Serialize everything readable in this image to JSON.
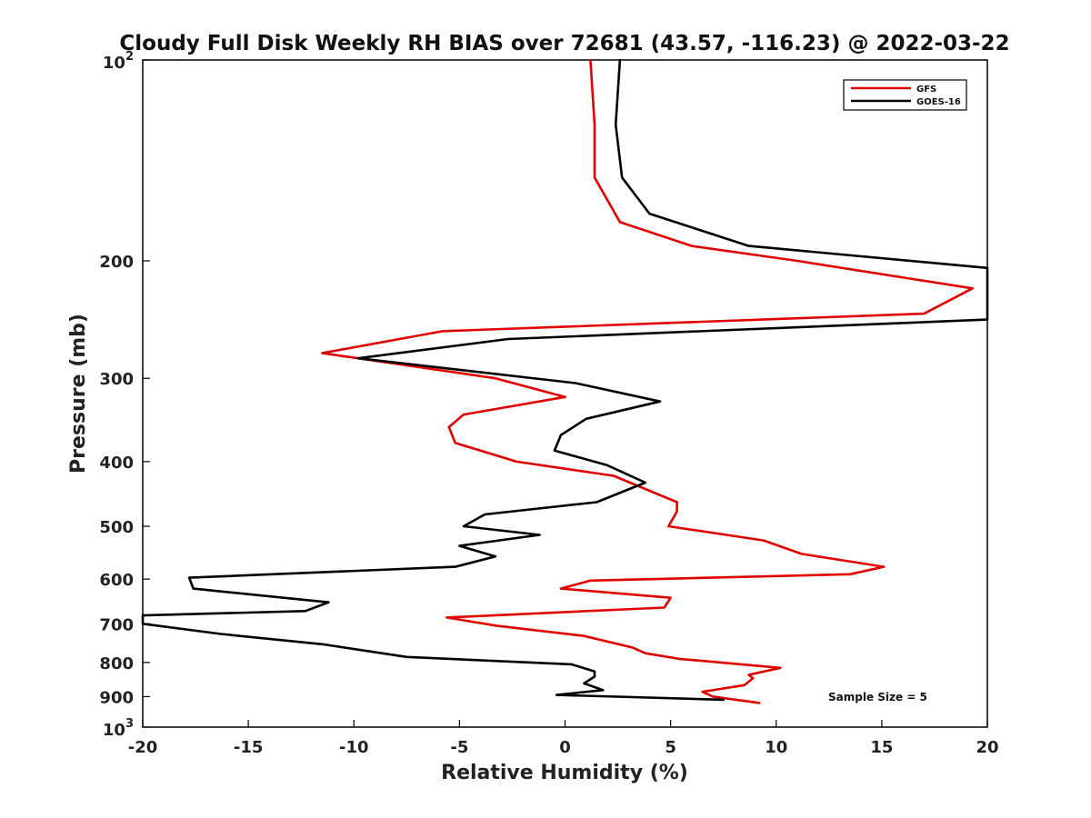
{
  "chart_data": {
    "type": "line",
    "title": "Cloudy Full Disk Weekly RH BIAS over 72681 (43.57, -116.23) @ 2022-03-22",
    "xlabel": "Relative Humidity (%)",
    "ylabel": "Pressure (mb)",
    "xlim": [
      -20,
      20
    ],
    "ylim": [
      1000,
      100
    ],
    "y_scale": "log",
    "y_reversed": true,
    "x_ticks": [
      "-20",
      "-15",
      "-10",
      "-5",
      "0",
      "5",
      "10",
      "15",
      "20"
    ],
    "y_ticks": [
      {
        "value": 100,
        "base": "10",
        "exp": "2"
      },
      {
        "value": 200,
        "label": "200"
      },
      {
        "value": 300,
        "label": "300"
      },
      {
        "value": 400,
        "label": "400"
      },
      {
        "value": 500,
        "label": "500"
      },
      {
        "value": 600,
        "label": "600"
      },
      {
        "value": 700,
        "label": "700"
      },
      {
        "value": 800,
        "label": "800"
      },
      {
        "value": 900,
        "label": "900"
      },
      {
        "value": 1000,
        "base": "10",
        "exp": "3"
      }
    ],
    "grid": false,
    "legend": "top-right",
    "annotation": "Sample Size = 5",
    "series": [
      {
        "name": "GFS",
        "color": "#e00000",
        "points": [
          [
            1.2,
            100
          ],
          [
            1.4,
            125
          ],
          [
            1.4,
            150
          ],
          [
            2.6,
            175
          ],
          [
            6.0,
            190
          ],
          [
            11.0,
            200
          ],
          [
            19.3,
            220
          ],
          [
            17.0,
            240
          ],
          [
            -5.8,
            255
          ],
          [
            -11.5,
            275
          ],
          [
            -3.3,
            300
          ],
          [
            0.0,
            320
          ],
          [
            -4.8,
            340
          ],
          [
            -5.5,
            355
          ],
          [
            -5.2,
            375
          ],
          [
            -2.3,
            400
          ],
          [
            2.3,
            420
          ],
          [
            5.3,
            460
          ],
          [
            5.3,
            475
          ],
          [
            4.9,
            500
          ],
          [
            9.4,
            525
          ],
          [
            11.2,
            550
          ],
          [
            15.1,
            575
          ],
          [
            13.5,
            590
          ],
          [
            1.2,
            603
          ],
          [
            -0.2,
            620
          ],
          [
            5.0,
            640
          ],
          [
            4.7,
            662
          ],
          [
            -5.6,
            685
          ],
          [
            -3.2,
            705
          ],
          [
            0.9,
            730
          ],
          [
            3.2,
            760
          ],
          [
            3.8,
            775
          ],
          [
            5.4,
            790
          ],
          [
            10.2,
            815
          ],
          [
            8.7,
            835
          ],
          [
            8.9,
            845
          ],
          [
            8.5,
            865
          ],
          [
            6.5,
            885
          ],
          [
            7.0,
            900
          ],
          [
            9.2,
            920
          ]
        ]
      },
      {
        "name": "GOES-16",
        "color": "#000000",
        "points": [
          [
            2.6,
            100
          ],
          [
            2.4,
            125
          ],
          [
            2.7,
            150
          ],
          [
            4.0,
            170
          ],
          [
            8.7,
            190
          ],
          [
            20.0,
            205
          ],
          [
            20.0,
            245
          ],
          [
            -2.7,
            262
          ],
          [
            -9.8,
            280
          ],
          [
            0.5,
            305
          ],
          [
            4.5,
            325
          ],
          [
            1.0,
            345
          ],
          [
            -0.2,
            365
          ],
          [
            -0.5,
            385
          ],
          [
            2.0,
            405
          ],
          [
            3.8,
            430
          ],
          [
            1.5,
            460
          ],
          [
            -3.8,
            480
          ],
          [
            -4.8,
            500
          ],
          [
            -1.2,
            515
          ],
          [
            -5.0,
            535
          ],
          [
            -3.3,
            555
          ],
          [
            -5.2,
            575
          ],
          [
            -17.8,
            597
          ],
          [
            -17.6,
            620
          ],
          [
            -11.2,
            650
          ],
          [
            -12.3,
            670
          ],
          [
            -20.0,
            680
          ],
          [
            -20.0,
            700
          ],
          [
            -16.3,
            725
          ],
          [
            -11.4,
            752
          ],
          [
            -7.5,
            785
          ],
          [
            0.3,
            805
          ],
          [
            1.4,
            825
          ],
          [
            1.4,
            840
          ],
          [
            0.9,
            860
          ],
          [
            1.8,
            880
          ],
          [
            -0.4,
            895
          ],
          [
            7.5,
            910
          ]
        ]
      }
    ]
  }
}
